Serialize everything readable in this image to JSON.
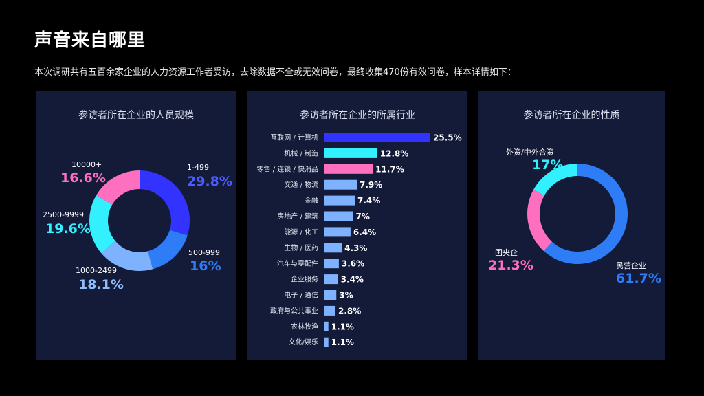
{
  "header": {
    "title": "声音来自哪里",
    "subtitle": "本次调研共有五百余家企业的人力资源工作者受访，去除数据不全或无效问卷，最终收集470份有效问卷，样本详情如下："
  },
  "chart_data": [
    {
      "type": "pie",
      "title": "参访者所在企业的人员规模",
      "slices": [
        {
          "label": "1-499",
          "value": 29.8,
          "display": "29.8%",
          "color": "#3333ff"
        },
        {
          "label": "500-999",
          "value": 16,
          "display": "16%",
          "color": "#2e7cf6"
        },
        {
          "label": "1000-2499",
          "value": 18.1,
          "display": "18.1%",
          "color": "#7eb2ff"
        },
        {
          "label": "2500-9999",
          "value": 19.6,
          "display": "19.6%",
          "color": "#33f0ff"
        },
        {
          "label": "10000+",
          "value": 16.6,
          "display": "16.6%",
          "color": "#ff6fbf"
        }
      ]
    },
    {
      "type": "bar",
      "title": "参访者所在企业的所属行业",
      "categories": [
        "互联网 / 计算机",
        "机械 / 制造",
        "零售 / 连锁 / 快消品",
        "交通 / 物流",
        "金融",
        "房地产 / 建筑",
        "能源 / 化工",
        "生物 / 医药",
        "汽车与零配件",
        "企业服务",
        "电子 / 通信",
        "政府与公共事业",
        "农林牧渔",
        "文化/娱乐"
      ],
      "values": [
        25.5,
        12.8,
        11.7,
        7.9,
        7.4,
        7,
        6.4,
        4.3,
        3.6,
        3.4,
        3,
        2.8,
        1.1,
        1.1
      ],
      "labels": [
        "25.5%",
        "12.8%",
        "11.7%",
        "7.9%",
        "7.4%",
        "7%",
        "6.4%",
        "4.3%",
        "3.6%",
        "3.4%",
        "3%",
        "2.8%",
        "1.1%",
        "1.1%"
      ],
      "colors": [
        "#3333ff",
        "#33f0ff",
        "#ff6fbf",
        "#7eb2ff",
        "#7eb2ff",
        "#7eb2ff",
        "#7eb2ff",
        "#7eb2ff",
        "#7eb2ff",
        "#7eb2ff",
        "#7eb2ff",
        "#7eb2ff",
        "#7eb2ff",
        "#7eb2ff"
      ]
    },
    {
      "type": "pie",
      "title": "参访者所在企业的性质",
      "slices": [
        {
          "label": "民营企业",
          "value": 61.7,
          "display": "61.7%",
          "color": "#2e7cf6"
        },
        {
          "label": "国央企",
          "value": 21.3,
          "display": "21.3%",
          "color": "#ff6fbf"
        },
        {
          "label": "外资/中外合资",
          "value": 17,
          "display": "17%",
          "color": "#33f0ff"
        }
      ]
    }
  ]
}
